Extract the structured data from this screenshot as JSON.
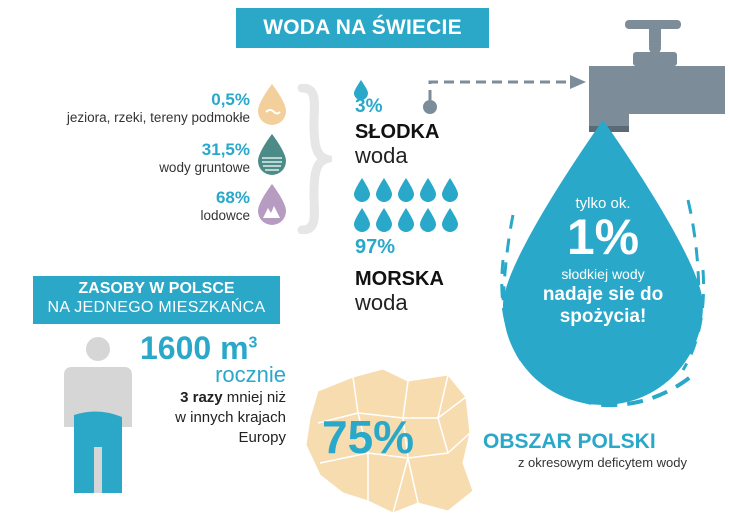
{
  "title": "WODA NA ŚWIECIE",
  "fresh_breakdown": [
    {
      "percent": "0,5%",
      "label": "jeziora, rzeki, tereny podmokłe",
      "icon": "lake-drop-icon",
      "color": "#f3cf9c"
    },
    {
      "percent": "31,5%",
      "label": "wody gruntowe",
      "icon": "groundwater-drop-icon",
      "color": "#4c8c88"
    },
    {
      "percent": "68%",
      "label": "lodowce",
      "icon": "glacier-drop-icon",
      "color": "#b79cc2"
    }
  ],
  "fresh": {
    "percent": "3%",
    "bold": "SŁODKA",
    "word": "woda"
  },
  "sea": {
    "percent": "97%",
    "bold": "MORSKA",
    "word": "woda",
    "drop_count": 10
  },
  "big_drop": {
    "line1": "tylko ok.",
    "big": "1%",
    "line2": "słodkiej wody",
    "line3": "nadaje sie do",
    "line4": "spożycia!"
  },
  "zasoby": {
    "title1": "ZASOBY W POLSCE",
    "title2": "NA JEDNEGO MIESZKAŃCA",
    "amount": "1600 m",
    "amount_sup": "3",
    "rocznie": "rocznie",
    "times": "3 razy",
    "less": " mniej niż",
    "line2": "w innych krajach",
    "line3": "Europy",
    "fill_fraction": 0.35
  },
  "poland": {
    "percent": "75%",
    "heading": "OBSZAR POLSKI",
    "sub": "z okresowym deficytem wody"
  },
  "colors": {
    "accent": "#2ba7c7",
    "drop": "#29a8c9",
    "map": "#f7dcb0",
    "person_grey": "#d6d6d6",
    "pipe_grey": "#7c8c99"
  }
}
